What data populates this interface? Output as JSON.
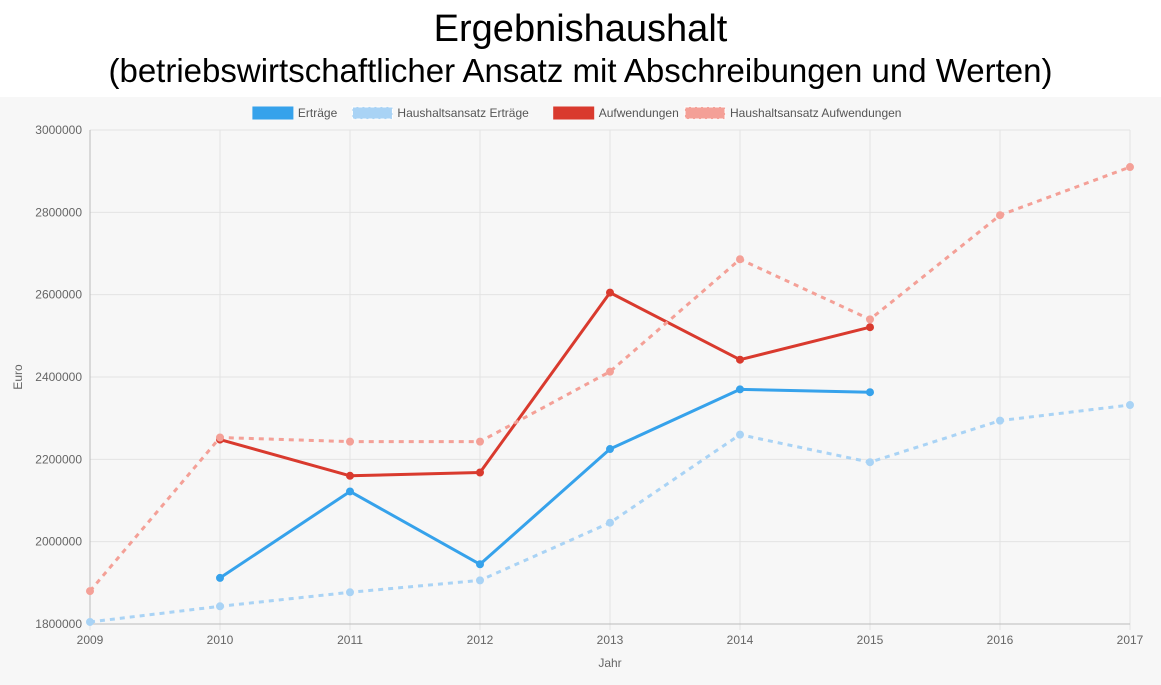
{
  "title": "Ergebnishaushalt",
  "subtitle": "(betriebswirtschaftlicher Ansatz mit Abschreibungen und Werten)",
  "chart_data": {
    "type": "line",
    "xlabel": "Jahr",
    "ylabel": "Euro",
    "x": [
      "2009",
      "2010",
      "2011",
      "2012",
      "2013",
      "2014",
      "2015",
      "2016",
      "2017"
    ],
    "ylim": [
      1800000,
      3000000
    ],
    "yticks": [
      "1800000",
      "2000000",
      "2200000",
      "2400000",
      "2600000",
      "2800000",
      "3000000"
    ],
    "grid": true,
    "legend": "top",
    "series": [
      {
        "name": "Erträge",
        "color": "#36a2eb",
        "dashed": false,
        "values": [
          null,
          1912000,
          2122000,
          1945000,
          2225000,
          2370000,
          2363000,
          null,
          null
        ]
      },
      {
        "name": "Haushaltsansatz Erträge",
        "color": "#a9d3f5",
        "dashed": true,
        "values": [
          1805000,
          1843000,
          1877000,
          1906000,
          2046000,
          2260000,
          2193000,
          2294000,
          2332000
        ]
      },
      {
        "name": "Aufwendungen",
        "color": "#d93a2e",
        "dashed": false,
        "values": [
          null,
          2248000,
          2160000,
          2168000,
          2605000,
          2442000,
          2521000,
          null,
          null
        ]
      },
      {
        "name": "Haushaltsansatz Aufwendungen",
        "color": "#f4a097",
        "dashed": true,
        "values": [
          1880000,
          2253000,
          2243000,
          2243000,
          2413000,
          2686000,
          2540000,
          2793000,
          2910000
        ]
      }
    ]
  }
}
